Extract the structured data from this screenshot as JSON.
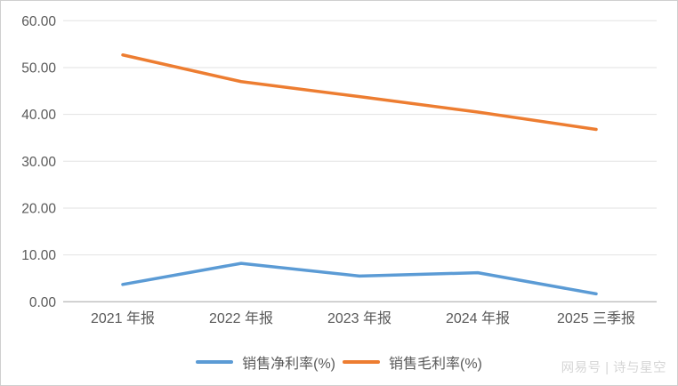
{
  "chart_data": {
    "type": "line",
    "title": "",
    "xlabel": "",
    "ylabel": "",
    "categories": [
      "2021 年报",
      "2022 年报",
      "2023 年报",
      "2024 年报",
      "2025 三季报"
    ],
    "series": [
      {
        "name": "销售净利率(%)",
        "color": "#5B9BD5",
        "values": [
          3.7,
          8.2,
          5.5,
          6.2,
          1.7
        ]
      },
      {
        "name": "销售毛利率(%)",
        "color": "#ED7D31",
        "values": [
          52.7,
          47.0,
          43.8,
          40.5,
          36.8
        ]
      }
    ],
    "ylim": [
      0,
      60
    ],
    "ytick_step": 10,
    "ytick_labels": [
      "0.00",
      "10.00",
      "20.00",
      "30.00",
      "40.00",
      "50.00",
      "60.00"
    ],
    "grid": true,
    "legend_position": "bottom"
  },
  "style_colors": {
    "gridline": "#e2e2e2",
    "axis_line": "#bdbdbd",
    "tick_label": "#595959",
    "watermark": "#d6d6d6"
  },
  "watermark": {
    "text": "网易号 | 诗与星空"
  }
}
